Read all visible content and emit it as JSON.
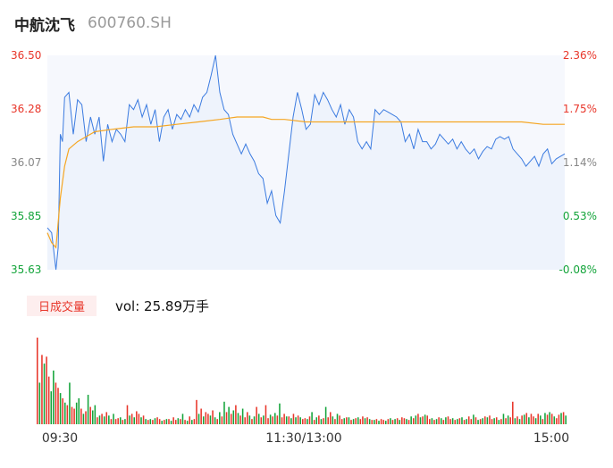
{
  "header": {
    "name": "中航沈飞",
    "code": "600760.SH"
  },
  "volume_panel": {
    "tag": "日成交量",
    "label_prefix": "vol: ",
    "value": "25.89万手"
  },
  "colors": {
    "price_line": "#3b7be0",
    "avg_line": "#f5a623",
    "up": "#e8362a",
    "down": "#13a43a",
    "axis_up": "#e8362a",
    "axis_down": "#13a43a",
    "axis_neutral": "#888888"
  },
  "chart_data": [
    {
      "type": "line",
      "title": "",
      "price_axis": {
        "ticks": [
          "36.50",
          "36.28",
          "36.07",
          "35.85",
          "35.63"
        ],
        "ylim": [
          35.63,
          36.5
        ]
      },
      "pct_axis": {
        "ticks": [
          "2.36%",
          "1.75%",
          "1.14%",
          "0.53%",
          "-0.08%"
        ]
      },
      "grid": false,
      "series": [
        {
          "key": "price",
          "x": [
            0,
            2,
            4,
            5,
            6,
            7,
            8,
            10,
            12,
            14,
            16,
            18,
            20,
            22,
            24,
            26,
            28,
            30,
            32,
            34,
            36,
            38,
            40,
            42,
            44,
            46,
            48,
            50,
            52,
            54,
            56,
            58,
            60,
            62,
            64,
            66,
            68,
            70,
            72,
            74,
            76,
            78,
            80,
            82,
            84,
            86,
            88,
            90,
            92,
            94,
            96,
            98,
            100,
            102,
            104,
            106,
            108,
            110,
            112,
            114,
            116,
            118,
            120,
            122,
            124,
            126,
            128,
            130,
            132,
            134,
            136,
            138,
            140,
            142,
            144,
            146,
            148,
            150,
            152,
            154,
            156,
            158,
            160,
            162,
            164,
            166,
            168,
            170,
            172,
            174,
            176,
            178,
            180,
            182,
            184,
            186,
            188,
            190,
            192,
            194,
            196,
            198,
            200,
            202,
            204,
            206,
            208,
            210,
            212,
            214,
            216,
            218,
            220,
            222,
            224,
            226,
            228,
            230,
            232,
            234,
            236,
            238,
            240
          ],
          "values": [
            35.8,
            35.78,
            35.63,
            35.72,
            36.18,
            36.15,
            36.33,
            36.35,
            36.18,
            36.32,
            36.3,
            36.15,
            36.25,
            36.18,
            36.25,
            36.07,
            36.22,
            36.15,
            36.2,
            36.18,
            36.15,
            36.3,
            36.28,
            36.32,
            36.25,
            36.3,
            36.22,
            36.28,
            36.15,
            36.25,
            36.28,
            36.2,
            36.26,
            36.24,
            36.28,
            36.25,
            36.3,
            36.27,
            36.33,
            36.35,
            36.42,
            36.5,
            36.35,
            36.28,
            36.26,
            36.18,
            36.14,
            36.1,
            36.14,
            36.1,
            36.07,
            36.02,
            36.0,
            35.9,
            35.95,
            35.85,
            35.82,
            35.95,
            36.1,
            36.25,
            36.35,
            36.28,
            36.2,
            36.22,
            36.34,
            36.3,
            36.35,
            36.32,
            36.28,
            36.25,
            36.3,
            36.22,
            36.28,
            36.25,
            36.15,
            36.12,
            36.15,
            36.12,
            36.28,
            36.26,
            36.28,
            36.27,
            36.26,
            36.25,
            36.23,
            36.15,
            36.18,
            36.12,
            36.2,
            36.15,
            36.15,
            36.12,
            36.14,
            36.18,
            36.16,
            36.14,
            36.16,
            36.12,
            36.15,
            36.12,
            36.1,
            36.12,
            36.08,
            36.11,
            36.13,
            36.12,
            36.16,
            36.17,
            36.16,
            36.17,
            36.12,
            36.1,
            36.08,
            36.05,
            36.07,
            36.09,
            36.05,
            36.1,
            36.12,
            36.06,
            36.08,
            36.09,
            36.1
          ]
        },
        {
          "key": "avg",
          "x": [
            0,
            2,
            4,
            6,
            8,
            10,
            14,
            18,
            22,
            30,
            40,
            50,
            60,
            70,
            80,
            88,
            90,
            100,
            104,
            110,
            120,
            140,
            160,
            180,
            200,
            210,
            220,
            230,
            240
          ],
          "values": [
            35.78,
            35.74,
            35.72,
            35.92,
            36.05,
            36.12,
            36.15,
            36.17,
            36.19,
            36.2,
            36.21,
            36.21,
            36.22,
            36.23,
            36.24,
            36.25,
            36.25,
            36.25,
            36.24,
            36.24,
            36.23,
            36.23,
            36.23,
            36.23,
            36.23,
            36.23,
            36.23,
            36.22,
            36.22
          ]
        }
      ],
      "x_ticks": [
        "09:30",
        "11:30/13:00",
        "15:00"
      ]
    },
    {
      "type": "bar",
      "title": "",
      "colors_rule": "red when price up, green when down",
      "series": [
        {
          "key": "volume",
          "values": [
            100,
            48,
            80,
            70,
            78,
            55,
            38,
            62,
            48,
            42,
            36,
            30,
            25,
            22,
            48,
            20,
            18,
            25,
            30,
            18,
            12,
            15,
            34,
            20,
            16,
            22,
            8,
            10,
            12,
            9,
            14,
            10,
            6,
            12,
            6,
            7,
            8,
            5,
            6,
            22,
            10,
            12,
            8,
            15,
            12,
            8,
            10,
            6,
            5,
            6,
            5,
            7,
            8,
            6,
            4,
            5,
            6,
            6,
            4,
            8,
            5,
            7,
            6,
            12,
            5,
            4,
            9,
            5,
            6,
            28,
            12,
            18,
            9,
            14,
            12,
            10,
            16,
            8,
            6,
            14,
            9,
            26,
            14,
            20,
            12,
            16,
            22,
            13,
            10,
            18,
            8,
            14,
            10,
            6,
            9,
            20,
            12,
            8,
            10,
            22,
            7,
            11,
            9,
            13,
            10,
            24,
            8,
            12,
            9,
            9,
            7,
            12,
            8,
            10,
            8,
            6,
            7,
            6,
            9,
            14,
            5,
            8,
            10,
            6,
            7,
            20,
            8,
            14,
            9,
            6,
            12,
            10,
            6,
            7,
            8,
            8,
            5,
            6,
            7,
            8,
            6,
            9,
            7,
            8,
            6,
            5,
            5,
            6,
            4,
            6,
            5,
            4,
            6,
            7,
            5,
            6,
            7,
            5,
            8,
            7,
            6,
            5,
            9,
            7,
            10,
            12,
            8,
            9,
            11,
            10,
            6,
            7,
            5,
            6,
            8,
            7,
            5,
            8,
            9,
            6,
            7,
            5,
            6,
            7,
            8,
            5,
            6,
            9,
            6,
            11,
            8,
            5,
            6,
            7,
            9,
            8,
            10,
            6,
            7,
            8,
            5,
            6,
            12,
            7,
            10,
            8,
            26,
            7,
            9,
            6,
            10,
            11,
            13,
            8,
            12,
            9,
            7,
            12,
            10,
            6,
            13,
            11,
            14,
            12,
            9,
            7,
            11,
            13,
            14,
            10
          ],
          "up": [
            1,
            0,
            1,
            0,
            1,
            1,
            0,
            0,
            1,
            1,
            0,
            1,
            0,
            1,
            0,
            1,
            1,
            0,
            0,
            1,
            0,
            1,
            0,
            1,
            0,
            0,
            1,
            0,
            1,
            0,
            1,
            0,
            1,
            0,
            1,
            1,
            0,
            1,
            0,
            1,
            0,
            1,
            0,
            1,
            1,
            0,
            1,
            0,
            1,
            0,
            1,
            0,
            1,
            1,
            0,
            1,
            0,
            1,
            0,
            1,
            1,
            0,
            1,
            0,
            1,
            0,
            1,
            0,
            1,
            1,
            0,
            1,
            0,
            1,
            1,
            0,
            1,
            0,
            1,
            0,
            1,
            0,
            1,
            0,
            1,
            0,
            1,
            0,
            1,
            0,
            1,
            1,
            0,
            1,
            0,
            1,
            0,
            1,
            0,
            1,
            1,
            0,
            1,
            0,
            1,
            0,
            1,
            1,
            0,
            1,
            0,
            1,
            0,
            1,
            0,
            1,
            1,
            0,
            1,
            0,
            1,
            0,
            1,
            0,
            1,
            0,
            1,
            1,
            0,
            1,
            0,
            1,
            1,
            0,
            1,
            0,
            1,
            0,
            1,
            0,
            1,
            1,
            0,
            1,
            0,
            1,
            0,
            1,
            0,
            1,
            1,
            0,
            1,
            0,
            1,
            0,
            1,
            0,
            1,
            1,
            0,
            1,
            0,
            1,
            0,
            1,
            0,
            1,
            0,
            1,
            1,
            0,
            1,
            0,
            1,
            0,
            1,
            0,
            1,
            1,
            0,
            1,
            0,
            1,
            0,
            1,
            0,
            1,
            1,
            0,
            1,
            0,
            1,
            0,
            1,
            0,
            1,
            1,
            0,
            1,
            0,
            1,
            0,
            1,
            0,
            1,
            1,
            0,
            1,
            0,
            1,
            0,
            1,
            0,
            1,
            1,
            0,
            1,
            0,
            1,
            0,
            1,
            0,
            1,
            0,
            1,
            1,
            0,
            1,
            0,
            1,
            0,
            1,
            0,
            1,
            0,
            1,
            1
          ]
        }
      ]
    }
  ]
}
